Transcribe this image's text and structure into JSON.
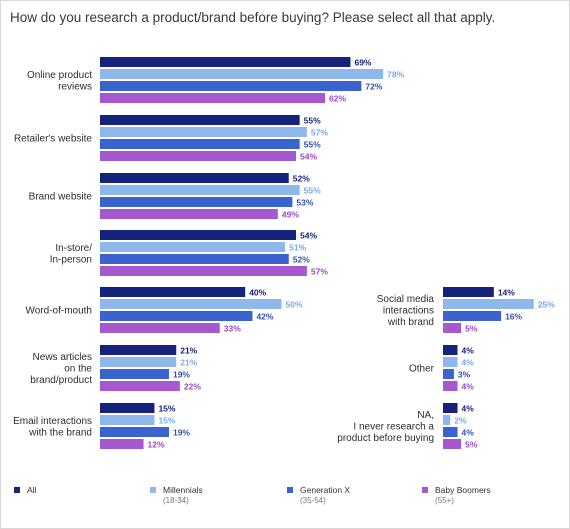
{
  "title": "How do you research a product/brand before buying? Please select all that apply.",
  "chart_data": {
    "type": "bar",
    "orientation": "horizontal",
    "title": "How do you research a product/brand before buying? Please select all that apply.",
    "unit": "%",
    "categories": [
      [
        "Online product",
        "reviews"
      ],
      [
        "Retailer's website"
      ],
      [
        "Brand website"
      ],
      [
        "In-store/",
        "In-person"
      ],
      [
        "Word-of-mouth"
      ],
      [
        "News articles",
        "on the",
        "brand/product"
      ],
      [
        "Email interactions",
        "with the brand"
      ],
      [
        "Social media",
        "interactions",
        "with brand"
      ],
      [
        "Other"
      ],
      [
        "NA,",
        "I never research a",
        "product before buying"
      ]
    ],
    "series": [
      {
        "name": "All",
        "color": "#16237d",
        "label_color": "#16237d",
        "values": [
          69,
          55,
          52,
          54,
          40,
          21,
          15,
          14,
          4,
          4
        ]
      },
      {
        "name": "Millennials",
        "sublabel": "(18-34)",
        "color": "#8eb8ec",
        "label_color": "#7aa9e3",
        "values": [
          78,
          57,
          55,
          51,
          50,
          21,
          15,
          25,
          4,
          2
        ]
      },
      {
        "name": "Generation X",
        "sublabel": "(35-54)",
        "color": "#3a63cf",
        "label_color": "#2f52b8",
        "values": [
          72,
          55,
          53,
          52,
          42,
          19,
          19,
          16,
          3,
          4
        ]
      },
      {
        "name": "Baby Boomers",
        "sublabel": "(55+)",
        "color": "#a658cf",
        "label_color": "#9a4ac8",
        "values": [
          62,
          54,
          49,
          57,
          33,
          22,
          12,
          5,
          4,
          5
        ]
      }
    ],
    "legend_position": "bottom",
    "grid": false
  }
}
